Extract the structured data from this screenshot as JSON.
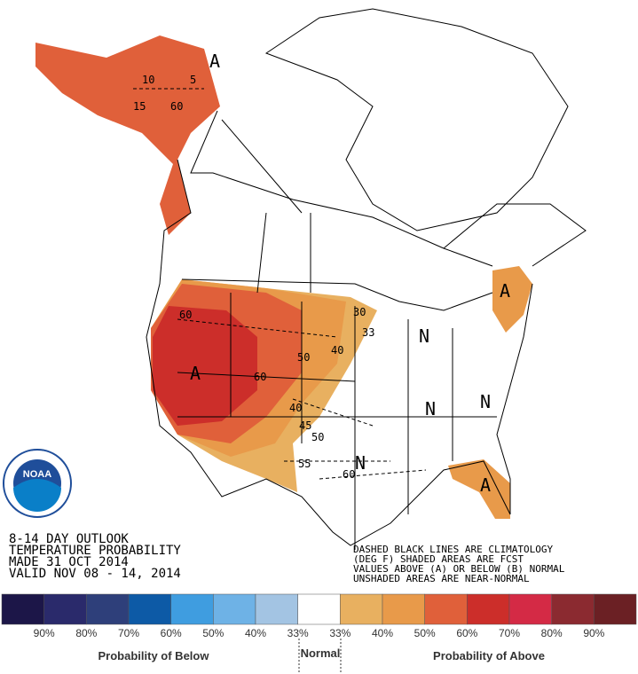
{
  "header": {
    "lines": [
      "8-14 DAY OUTLOOK",
      "TEMPERATURE PROBABILITY",
      "MADE  31 OCT 2014",
      "VALID  NOV 08 - 14, 2014"
    ]
  },
  "notes": [
    "DASHED BLACK LINES ARE CLIMATOLOGY",
    "(DEG F) SHADED AREAS ARE FCST",
    "VALUES ABOVE (A) OR BELOW (B) NORMAL",
    "UNSHADED AREAS ARE NEAR-NORMAL"
  ],
  "logo": "NOAA",
  "map": {
    "labels": [
      "A",
      "10",
      "5",
      "15",
      "60",
      "60",
      "A",
      "60",
      "50",
      "40",
      "30",
      "33",
      "A",
      "N",
      "N",
      "N",
      "40",
      "45",
      "50",
      "55",
      "N",
      "60",
      "A"
    ]
  },
  "legend": {
    "colors": [
      "#1c1648",
      "#2a2a6b",
      "#2e3f7a",
      "#0d5aa6",
      "#3f9de0",
      "#6eb2e6",
      "#a3c4e3",
      "#ffffff",
      "#e8b060",
      "#e89a4a",
      "#e0603a",
      "#cc2e2a",
      "#d42a45",
      "#8b2a30",
      "#6b2024"
    ],
    "labels": [
      "90%",
      "80%",
      "70%",
      "60%",
      "50%",
      "40%",
      "33%",
      "33%",
      "40%",
      "50%",
      "60%",
      "70%",
      "80%",
      "90%"
    ],
    "below": "Probability of Below",
    "normal": "Normal",
    "above": "Probability of Above"
  }
}
